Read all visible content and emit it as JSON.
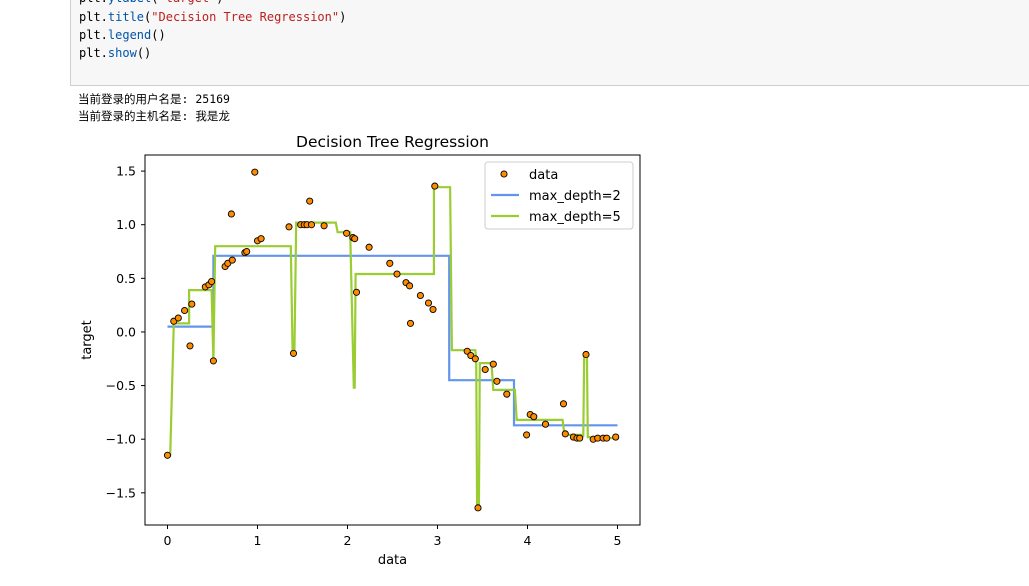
{
  "code": {
    "lines": [
      {
        "prefix": "plt.",
        "fn": "ylabel",
        "open": "(",
        "str": "\"target\"",
        "close": ")"
      },
      {
        "prefix": "plt.",
        "fn": "title",
        "open": "(",
        "str": "\"Decision Tree Regression\"",
        "close": ")"
      },
      {
        "prefix": "plt.",
        "fn": "legend",
        "open": "()",
        "str": "",
        "close": ""
      },
      {
        "prefix": "plt.",
        "fn": "show",
        "open": "()",
        "str": "",
        "close": ""
      }
    ]
  },
  "output": {
    "line1": "当前登录的用户名是: 25169",
    "line2": "当前登录的主机名是: 我是龙"
  },
  "chart_data": {
    "type": "scatter",
    "title": "Decision Tree Regression",
    "xlabel": "data",
    "ylabel": "target",
    "xlim": [
      -0.25,
      5.25
    ],
    "ylim": [
      -1.8,
      1.65
    ],
    "xticks": [
      0,
      1,
      2,
      3,
      4,
      5
    ],
    "yticks": [
      -1.5,
      -1.0,
      -0.5,
      0.0,
      0.5,
      1.0,
      1.5
    ],
    "xtick_labels": [
      "0",
      "1",
      "2",
      "3",
      "4",
      "5"
    ],
    "ytick_labels": [
      "−1.5",
      "−1.0",
      "−0.5",
      "0.0",
      "0.5",
      "1.0",
      "1.5"
    ],
    "legend_position": "top-right",
    "grid": false,
    "colors": {
      "data": "#ff8c00",
      "depth2": "#6495ed",
      "depth5": "#9acd32"
    },
    "scatter": {
      "name": "data",
      "x": [
        0.0,
        0.07,
        0.12,
        0.19,
        0.25,
        0.27,
        0.42,
        0.46,
        0.49,
        0.51,
        0.64,
        0.67,
        0.71,
        0.72,
        0.86,
        0.88,
        0.97,
        1.0,
        1.04,
        1.35,
        1.4,
        1.48,
        1.52,
        1.55,
        1.58,
        1.6,
        1.74,
        1.99,
        2.06,
        2.08,
        2.1,
        2.24,
        2.47,
        2.55,
        2.65,
        2.69,
        2.7,
        2.81,
        2.9,
        2.95,
        2.97,
        3.33,
        3.37,
        3.42,
        3.45,
        3.53,
        3.62,
        3.66,
        3.77,
        3.99,
        4.03,
        4.07,
        4.2,
        4.4,
        4.42,
        4.51,
        4.55,
        4.58,
        4.65,
        4.73,
        4.78,
        4.84,
        4.88,
        4.98
      ],
      "y": [
        -1.15,
        0.1,
        0.13,
        0.2,
        -0.13,
        0.26,
        0.42,
        0.44,
        0.47,
        -0.27,
        0.61,
        0.64,
        1.1,
        0.67,
        0.74,
        0.75,
        1.49,
        0.85,
        0.87,
        0.98,
        -0.2,
        1.0,
        1.0,
        1.0,
        1.22,
        1.0,
        0.99,
        0.92,
        0.88,
        0.87,
        0.37,
        0.79,
        0.64,
        0.54,
        0.46,
        0.43,
        0.08,
        0.34,
        0.27,
        0.21,
        1.36,
        -0.18,
        -0.22,
        -0.25,
        -1.64,
        -0.35,
        -0.3,
        -0.46,
        -0.58,
        -0.96,
        -0.77,
        -0.79,
        -0.86,
        -0.67,
        -0.95,
        -0.98,
        -0.99,
        -0.99,
        -0.21,
        -1.0,
        -0.99,
        -0.99,
        -0.99,
        -0.98
      ]
    },
    "series": [
      {
        "name": "max_depth=2",
        "x": [
          0.0,
          0.51,
          0.51,
          3.13,
          3.13,
          3.85,
          3.85,
          5.0
        ],
        "y": [
          0.05,
          0.05,
          0.71,
          0.71,
          -0.45,
          -0.45,
          -0.87,
          -0.87
        ]
      },
      {
        "name": "max_depth=5",
        "x": [
          0.0,
          0.03,
          0.07,
          0.24,
          0.24,
          0.49,
          0.51,
          0.53,
          1.37,
          1.39,
          1.41,
          1.43,
          1.87,
          1.89,
          2.03,
          2.07,
          2.08,
          2.09,
          2.11,
          2.96,
          2.96,
          3.14,
          3.16,
          3.42,
          3.43,
          3.44,
          3.46,
          3.47,
          3.6,
          3.62,
          3.86,
          3.88,
          4.39,
          4.41,
          4.6,
          4.6,
          4.62,
          4.63,
          4.64,
          4.66,
          4.67,
          4.69,
          4.71,
          4.73,
          5.0
        ],
        "y": [
          -1.15,
          -1.15,
          0.08,
          0.08,
          0.39,
          0.39,
          -0.27,
          0.8,
          0.8,
          -0.2,
          -0.2,
          1.02,
          1.02,
          0.93,
          0.93,
          -0.52,
          -0.52,
          0.54,
          0.54,
          0.54,
          1.35,
          1.35,
          -0.17,
          -0.17,
          -0.26,
          -1.64,
          -1.64,
          -0.29,
          -0.29,
          -0.54,
          -0.54,
          -0.82,
          -0.82,
          -0.96,
          -0.96,
          -0.97,
          -0.97,
          -0.2,
          -0.2,
          -0.2,
          -0.98,
          -0.98,
          -0.99,
          -0.99,
          -0.99
        ]
      }
    ]
  }
}
